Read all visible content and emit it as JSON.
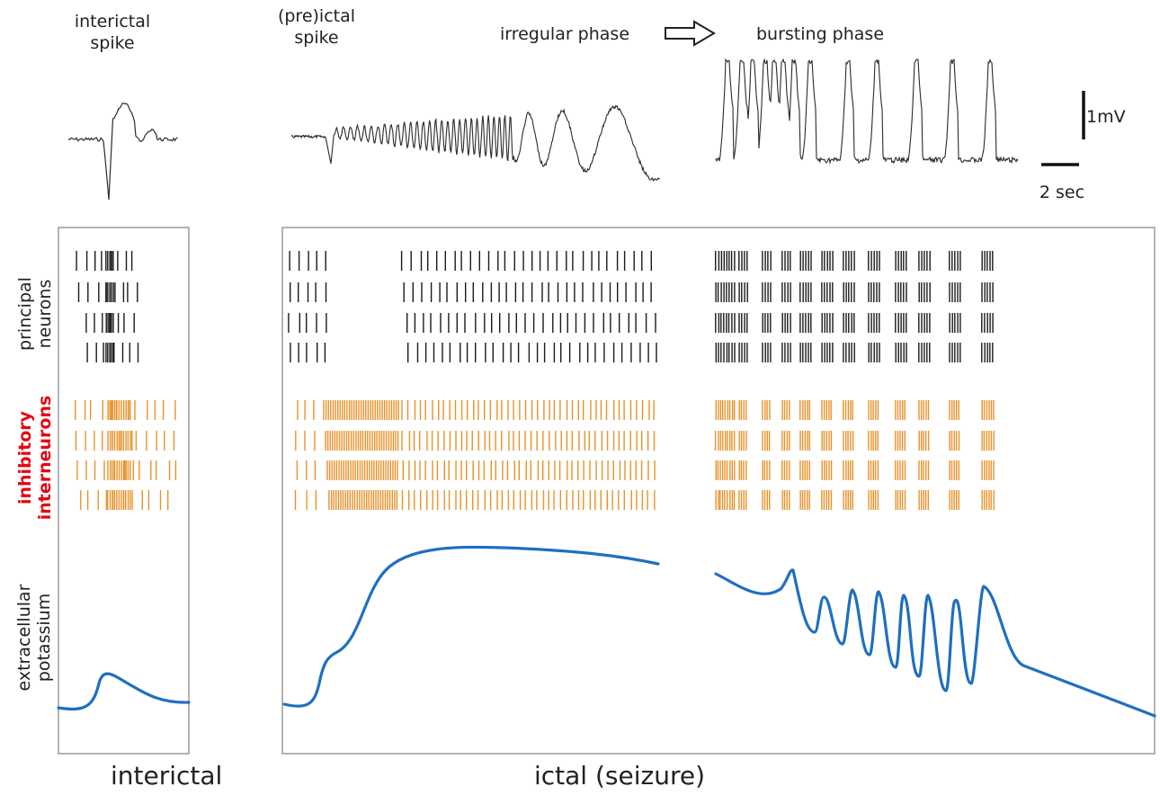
{
  "headings": {
    "interictal_spike": [
      "interictal",
      "spike"
    ],
    "preictal_spike": [
      "(pre)ictal",
      "spike"
    ],
    "irregular_phase": "irregular phase",
    "bursting_phase": "bursting phase"
  },
  "scale_bars": {
    "voltage": "1mV",
    "time": "2 sec"
  },
  "row_labels": {
    "principal": [
      "principal",
      "neurons"
    ],
    "inhibitory": [
      "inhibitory",
      "interneurons"
    ],
    "potassium": [
      "extracellular",
      "potassium"
    ]
  },
  "bottom_labels": {
    "interictal": "interictal",
    "ictal": "ictal (seizure)"
  },
  "colors": {
    "principal": "#1a1a1a",
    "inhibitory": "#e8922a",
    "potassium": "#1f6fbf",
    "inhibitory_label": "#e30613",
    "frame": "#9a9a9a",
    "trace": "#2a2a2a"
  }
}
